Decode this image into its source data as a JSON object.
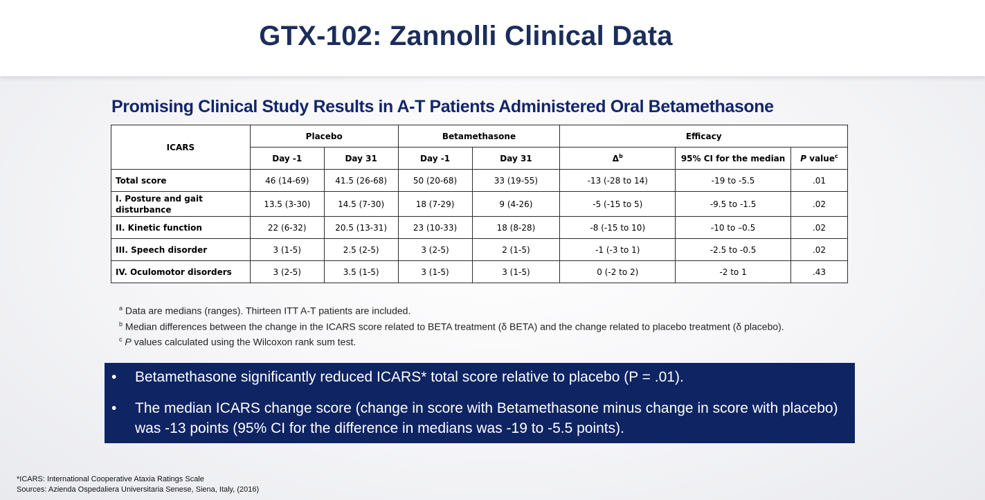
{
  "slide": {
    "title": "GTX-102: Zannolli Clinical Data",
    "subtitle": "Promising Clinical Study Results in A-T Patients Administered Oral Betamethasone"
  },
  "table": {
    "group_headers": {
      "icars": "ICARS",
      "placebo": "Placebo",
      "betamethasone": "Betamethasone",
      "efficacy": "Efficacy"
    },
    "sub_headers": {
      "placebo_day_minus1": "Day -1",
      "placebo_day31": "Day 31",
      "beta_day_minus1": "Day -1",
      "beta_day31": "Day 31",
      "delta": "Δ",
      "delta_sup": "b",
      "ci": "95% CI for the median",
      "pvalue_p": "P",
      "pvalue_rest": " value",
      "pvalue_sup": "c"
    },
    "rows": [
      {
        "label": "Total score",
        "cells": [
          "46 (14-69)",
          "41.5 (26-68)",
          "50 (20-68)",
          "33 (19-55)",
          "-13 (-28 to 14)",
          "-19 to -5.5",
          ".01"
        ]
      },
      {
        "label": "I. Posture and gait disturbance",
        "cells": [
          "13.5 (3-30)",
          "14.5 (7-30)",
          "18 (7-29)",
          "9 (4-26)",
          "-5 (-15 to 5)",
          "-9.5 to -1.5",
          ".02"
        ]
      },
      {
        "label": "II. Kinetic function",
        "cells": [
          "22 (6-32)",
          "20.5 (13-31)",
          "23 (10-33)",
          "18 (8-28)",
          "-8 (-15 to 10)",
          "-10 to –0.5",
          ".02"
        ]
      },
      {
        "label": "III. Speech disorder",
        "cells": [
          "3 (1-5)",
          "2.5 (2-5)",
          "3 (2-5)",
          "2 (1-5)",
          "-1 (-3 to 1)",
          "-2.5 to -0.5",
          ".02"
        ]
      },
      {
        "label": "IV. Oculomotor disorders",
        "cells": [
          "3 (2-5)",
          "3.5 (1-5)",
          "3 (1-5)",
          "3 (1-5)",
          "0 (-2 to 2)",
          "-2 to 1",
          ".43"
        ]
      }
    ]
  },
  "notes": [
    {
      "sup": "a",
      "text": " Data are medians (ranges). Thirteen ITT  A-T patients are included."
    },
    {
      "sup": "b",
      "text": " Median differences between the change in the ICARS score related to BETA treatment (δ BETA) and the change related to placebo treatment (δ placebo)."
    },
    {
      "sup": "c",
      "text_p": " P",
      "text": " values calculated using the Wilcoxon rank sum test."
    }
  ],
  "callout": {
    "bullet": "•",
    "items": [
      "Betamethasone significantly reduced ICARS* total score relative to placebo (P = .01).",
      "The median ICARS change score (change in score with Betamethasone minus change in score with placebo) was -13 points (95% CI for the difference in medians was -19 to -5.5 points)."
    ],
    "background": "#0f2463"
  },
  "footer": {
    "line1": "*ICARS:  International Cooperative Ataxia  Ratings Scale",
    "line2": "Sources: Azienda Ospedaliera Universitaria Senese, Siena, Italy, (2016)"
  },
  "colors": {
    "title": "#1b2e5a",
    "subtitle": "#13266a"
  }
}
